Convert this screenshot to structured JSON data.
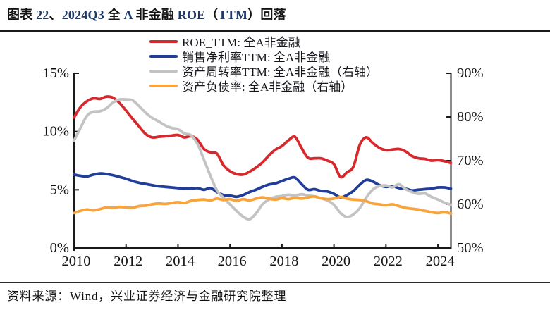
{
  "header": {
    "title_segments": [
      {
        "text": "图表 ",
        "color": "#141414"
      },
      {
        "text": "22",
        "color": "#1f3864"
      },
      {
        "text": "、",
        "color": "#141414"
      },
      {
        "text": "2024Q3 ",
        "color": "#1f3864"
      },
      {
        "text": "全 ",
        "color": "#141414"
      },
      {
        "text": "A",
        "color": "#1f3864"
      },
      {
        "text": " 非金融 ",
        "color": "#141414"
      },
      {
        "text": "ROE",
        "color": "#1f3864"
      },
      {
        "text": "（",
        "color": "#141414"
      },
      {
        "text": "TTM",
        "color": "#1f3864"
      },
      {
        "text": "）回落",
        "color": "#141414"
      }
    ]
  },
  "chart_data": {
    "type": "line",
    "title": "2024Q3 全A非金融 ROE（TTM）回落",
    "x_axis": {
      "start": 2010,
      "end": 2024.5,
      "step": 0.25,
      "tick_labels": [
        {
          "year": 2010,
          "label": "2010"
        },
        {
          "year": 2012,
          "label": "2012"
        },
        {
          "year": 2014,
          "label": "2014"
        },
        {
          "year": 2016,
          "label": "2016"
        },
        {
          "year": 2018,
          "label": "2018"
        },
        {
          "year": 2020,
          "label": "2020"
        },
        {
          "year": 2022,
          "label": "2022"
        },
        {
          "year": 2024,
          "label": "2024"
        }
      ],
      "tick_mark_years": [
        2012,
        2014,
        2016,
        2018,
        2020,
        2022,
        2024
      ]
    },
    "left_axis": {
      "min": 0,
      "max": 15,
      "ticks": [
        {
          "value": 0,
          "label": "0%"
        },
        {
          "value": 5,
          "label": "5%"
        },
        {
          "value": 10,
          "label": "10%"
        },
        {
          "value": 15,
          "label": "15%"
        }
      ]
    },
    "right_axis": {
      "min": 50,
      "max": 90,
      "ticks": [
        {
          "value": 50,
          "label": "50%"
        },
        {
          "value": 60,
          "label": "60%"
        },
        {
          "value": 70,
          "label": "70%"
        },
        {
          "value": 80,
          "label": "80%"
        },
        {
          "value": 90,
          "label": "90%"
        }
      ]
    },
    "series": [
      {
        "name": "ROE_TTM: 全A非金融",
        "axis": "left",
        "color": "#d7282d",
        "values": [
          11.2,
          12.1,
          12.6,
          12.85,
          12.8,
          13.0,
          12.9,
          12.45,
          11.8,
          11.1,
          10.45,
          9.8,
          9.5,
          9.55,
          9.6,
          9.65,
          9.7,
          9.5,
          9.6,
          9.3,
          8.5,
          8.2,
          8.1,
          7.1,
          6.6,
          6.35,
          6.3,
          6.55,
          6.9,
          7.35,
          7.95,
          8.45,
          8.75,
          9.25,
          9.55,
          8.6,
          7.75,
          7.7,
          7.7,
          7.5,
          7.2,
          6.1,
          6.5,
          7.0,
          8.9,
          9.5,
          9.0,
          8.6,
          8.4,
          8.45,
          8.5,
          8.3,
          7.9,
          7.7,
          7.65,
          7.5,
          7.55,
          7.45,
          7.3
        ]
      },
      {
        "name": "销售净利率TTM: 全A非金融",
        "axis": "left",
        "color": "#1f3d99",
        "values": [
          6.3,
          6.2,
          6.15,
          6.3,
          6.4,
          6.35,
          6.25,
          6.1,
          5.95,
          5.75,
          5.6,
          5.5,
          5.4,
          5.3,
          5.25,
          5.2,
          5.15,
          5.1,
          5.1,
          5.15,
          5.0,
          5.15,
          4.8,
          4.55,
          4.5,
          4.4,
          4.55,
          4.8,
          5.0,
          5.25,
          5.45,
          5.55,
          5.75,
          5.95,
          6.05,
          5.5,
          5.0,
          5.05,
          4.9,
          4.85,
          4.65,
          4.35,
          4.55,
          4.9,
          5.45,
          5.85,
          5.7,
          5.4,
          5.25,
          5.3,
          5.15,
          5.1,
          4.95,
          5.0,
          5.05,
          5.1,
          5.2,
          5.2,
          5.1
        ]
      },
      {
        "name": "资产周转率TTM: 全A非金融（右轴）",
        "axis": "right",
        "color": "#c3c3c3",
        "values": [
          74.6,
          77.5,
          80.3,
          81.2,
          81.3,
          82.0,
          83.3,
          84.0,
          84.0,
          83.8,
          82.5,
          81.0,
          79.8,
          79.0,
          78.1,
          77.5,
          77.2,
          76.2,
          75.8,
          73.8,
          70.2,
          66.5,
          63.2,
          61.5,
          60.0,
          58.5,
          57.2,
          56.6,
          57.9,
          60.0,
          61.1,
          61.7,
          61.9,
          62.2,
          62.0,
          62.3,
          62.0,
          61.8,
          61.4,
          60.9,
          59.9,
          58.0,
          57.1,
          57.7,
          59.2,
          61.6,
          63.4,
          64.2,
          64.3,
          63.9,
          64.6,
          63.5,
          62.8,
          62.4,
          62.5,
          61.7,
          61.1,
          60.4,
          59.9
        ]
      },
      {
        "name": "资产负债率: 全A非金融（右轴）",
        "axis": "right",
        "color": "#f9a33c",
        "values": [
          58.0,
          58.5,
          58.8,
          58.6,
          58.9,
          59.3,
          59.2,
          59.4,
          59.3,
          59.2,
          59.6,
          59.7,
          60.0,
          60.2,
          60.1,
          60.3,
          60.5,
          60.3,
          60.8,
          61.0,
          61.1,
          60.9,
          61.3,
          61.0,
          61.2,
          60.8,
          61.2,
          60.9,
          61.3,
          61.6,
          61.3,
          61.1,
          61.4,
          61.2,
          61.5,
          61.3,
          61.6,
          61.8,
          61.4,
          61.2,
          61.3,
          61.7,
          61.3,
          61.1,
          61.0,
          60.7,
          60.2,
          60.0,
          59.8,
          60.0,
          59.6,
          59.2,
          59.0,
          58.8,
          58.5,
          58.2,
          58.0,
          58.2,
          57.9
        ]
      }
    ],
    "legend_position": "top-left-vertical",
    "grid": false
  },
  "footer": {
    "source_label": "资料来源：Wind，兴业证券经济与金融研究院整理"
  }
}
